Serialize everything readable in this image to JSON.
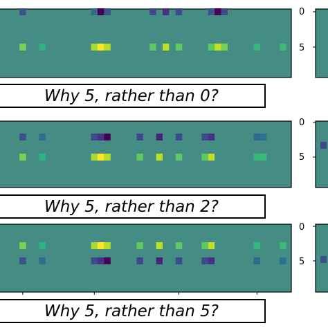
{
  "chart_data": [
    {
      "type": "heatmap",
      "caption": "Why 5, rather than 0?",
      "yticks": [
        "0",
        "5"
      ],
      "rows": [
        {
          "cells": [
            [
              3,
              "#3a528b"
            ],
            [
              14,
              "#31688e"
            ],
            [
              15,
              "#440154"
            ],
            [
              16,
              "#3b528b"
            ],
            [
              23,
              "#3f4889"
            ],
            [
              25,
              "#46327e"
            ],
            [
              27,
              "#3f4889"
            ],
            [
              32,
              "#3b528b"
            ],
            [
              33,
              "#440154"
            ],
            [
              34,
              "#3f4889"
            ]
          ]
        },
        {
          "cells": [
            [
              3,
              "#7ad151"
            ],
            [
              6,
              "#2fb47c"
            ],
            [
              14,
              "#a5db36"
            ],
            [
              15,
              "#fde725"
            ],
            [
              16,
              "#b5de2b"
            ],
            [
              23,
              "#5ec962"
            ],
            [
              25,
              "#bddf26"
            ],
            [
              27,
              "#5ec962"
            ],
            [
              32,
              "#5ec962"
            ],
            [
              33,
              "#c2df23"
            ],
            [
              34,
              "#7ad151"
            ],
            [
              39,
              "#35b779"
            ],
            [
              43,
              "#3bbb75"
            ]
          ]
        }
      ]
    },
    {
      "type": "heatmap",
      "caption": "Why 5, rather than 2?",
      "yticks": [
        "0",
        "5"
      ],
      "rows": [
        {
          "cells": [
            [
              3,
              "#3b528b"
            ],
            [
              6,
              "#2e6f8e"
            ],
            [
              14,
              "#3e4a89"
            ],
            [
              15,
              "#46327e"
            ],
            [
              16,
              "#440154"
            ],
            [
              21,
              "#3f4889"
            ],
            [
              24,
              "#482576"
            ],
            [
              27,
              "#3e4a89"
            ],
            [
              31,
              "#3e4a89"
            ],
            [
              32,
              "#46327e"
            ],
            [
              39,
              "#31688e"
            ],
            [
              40,
              "#2c728e"
            ]
          ]
        },
        {
          "cells": [
            [
              3,
              "#7ad151"
            ],
            [
              6,
              "#2fb47c"
            ],
            [
              14,
              "#a5db36"
            ],
            [
              15,
              "#fde725"
            ],
            [
              16,
              "#b5de2b"
            ],
            [
              21,
              "#5ec962"
            ],
            [
              24,
              "#bddf26"
            ],
            [
              27,
              "#5ec962"
            ],
            [
              31,
              "#5ec962"
            ],
            [
              32,
              "#c2df23"
            ],
            [
              39,
              "#35b779"
            ],
            [
              40,
              "#3bbb75"
            ]
          ]
        }
      ]
    },
    {
      "type": "heatmap",
      "caption": "Why 5, rather than 5?",
      "yticks": [
        "0",
        "5"
      ],
      "rows": [
        {
          "cells": [
            [
              3,
              "#7ad151"
            ],
            [
              6,
              "#2fb47c"
            ],
            [
              14,
              "#a5db36"
            ],
            [
              15,
              "#fde725"
            ],
            [
              16,
              "#b5de2b"
            ],
            [
              21,
              "#5ec962"
            ],
            [
              24,
              "#bddf26"
            ],
            [
              27,
              "#5ec962"
            ],
            [
              31,
              "#5ec962"
            ],
            [
              32,
              "#c2df23"
            ],
            [
              39,
              "#35b779"
            ],
            [
              43,
              "#3bbb75"
            ]
          ]
        },
        {
          "cells": [
            [
              3,
              "#3b528b"
            ],
            [
              6,
              "#2e6f8e"
            ],
            [
              14,
              "#3e4a89"
            ],
            [
              15,
              "#46327e"
            ],
            [
              16,
              "#440154"
            ],
            [
              21,
              "#3f4889"
            ],
            [
              24,
              "#482576"
            ],
            [
              27,
              "#3e4a89"
            ],
            [
              31,
              "#3e4a89"
            ],
            [
              32,
              "#46327e"
            ],
            [
              39,
              "#31688e"
            ],
            [
              43,
              "#2c728e"
            ]
          ]
        }
      ]
    }
  ],
  "right_panels": [
    {
      "yticks": [
        "0",
        "5"
      ]
    },
    {
      "yticks": [
        "0",
        "5"
      ]
    },
    {
      "yticks": [
        "0",
        "5"
      ]
    }
  ],
  "colors": {
    "background": "#458c84",
    "axis": "#000000",
    "caption_border": "#000000",
    "cell_default": "#448a83"
  }
}
